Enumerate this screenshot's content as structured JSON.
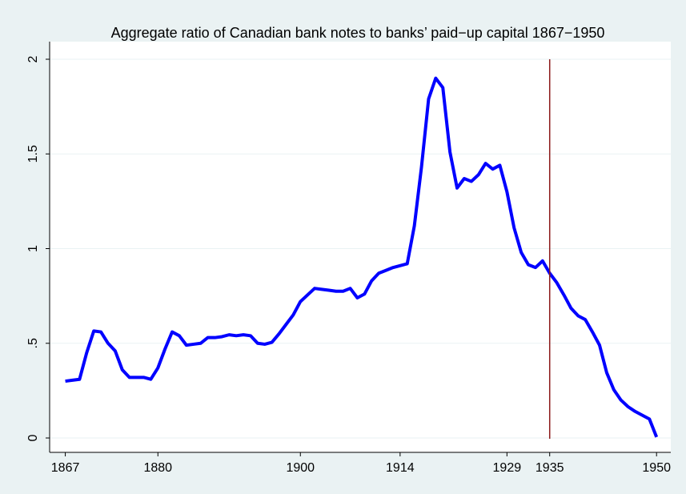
{
  "chart_data": {
    "type": "line",
    "title": "Aggregate ratio of Canadian bank notes to banks’ paid−up capital 1867−1950",
    "x": [
      1867,
      1868,
      1869,
      1870,
      1871,
      1872,
      1873,
      1874,
      1875,
      1876,
      1877,
      1878,
      1879,
      1880,
      1881,
      1882,
      1883,
      1884,
      1885,
      1886,
      1887,
      1888,
      1889,
      1890,
      1891,
      1892,
      1893,
      1894,
      1895,
      1896,
      1897,
      1898,
      1899,
      1900,
      1901,
      1902,
      1903,
      1904,
      1905,
      1906,
      1907,
      1908,
      1909,
      1910,
      1911,
      1912,
      1913,
      1914,
      1915,
      1916,
      1917,
      1918,
      1919,
      1920,
      1921,
      1922,
      1923,
      1924,
      1925,
      1926,
      1927,
      1928,
      1929,
      1930,
      1931,
      1932,
      1933,
      1934,
      1935,
      1936,
      1937,
      1938,
      1939,
      1940,
      1941,
      1942,
      1943,
      1944,
      1945,
      1946,
      1947,
      1948,
      1949,
      1950
    ],
    "values": [
      0.3,
      0.305,
      0.31,
      0.45,
      0.565,
      0.56,
      0.5,
      0.46,
      0.36,
      0.32,
      0.32,
      0.32,
      0.31,
      0.37,
      0.47,
      0.56,
      0.54,
      0.49,
      0.495,
      0.5,
      0.53,
      0.53,
      0.535,
      0.545,
      0.54,
      0.545,
      0.54,
      0.5,
      0.495,
      0.505,
      0.55,
      0.6,
      0.65,
      0.72,
      0.755,
      0.79,
      0.785,
      0.78,
      0.775,
      0.775,
      0.79,
      0.74,
      0.76,
      0.83,
      0.87,
      0.885,
      0.9,
      0.91,
      0.92,
      1.12,
      1.43,
      1.79,
      1.9,
      1.85,
      1.51,
      1.32,
      1.37,
      1.355,
      1.39,
      1.45,
      1.42,
      1.44,
      1.3,
      1.11,
      0.98,
      0.915,
      0.9,
      0.935,
      0.87,
      0.82,
      0.755,
      0.685,
      0.645,
      0.625,
      0.56,
      0.49,
      0.345,
      0.255,
      0.2,
      0.165,
      0.14,
      0.12,
      0.1,
      0.005
    ],
    "color": "#0000ff",
    "xlim": [
      1864.8,
      1952
    ],
    "xticks": [
      1867,
      1880,
      1900,
      1914,
      1929,
      1935,
      1950
    ],
    "ylim": [
      -0.076,
      2.093
    ],
    "yticks": [
      0,
      {
        "value": 0.5,
        "label": ".5"
      },
      1,
      1.5,
      2
    ],
    "grid": true,
    "vline": {
      "x": 1935,
      "color": "#8b1a1a"
    }
  }
}
